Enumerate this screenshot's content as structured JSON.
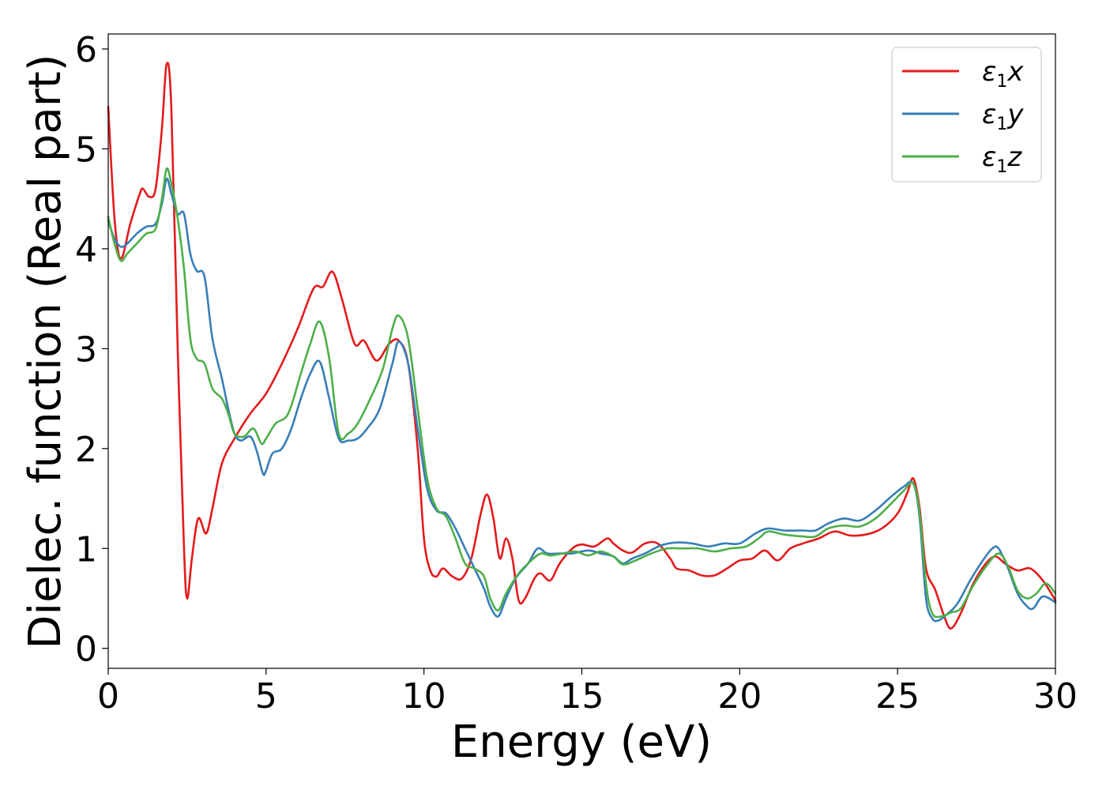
{
  "chart_data": {
    "type": "line",
    "title": "",
    "xlabel": "Energy (eV)",
    "ylabel": "Dielec. function (Real part)",
    "xlim": [
      0,
      30
    ],
    "ylim": [
      -0.2,
      6.15
    ],
    "xticks": [
      0,
      5,
      10,
      15,
      20,
      25,
      30
    ],
    "yticks": [
      0,
      1,
      2,
      3,
      4,
      5,
      6
    ],
    "grid": false,
    "legend_position": "top-right",
    "series": [
      {
        "label_main": "ε",
        "label_sub": "1",
        "label_var": "x",
        "color": "#e41a1c",
        "points": [
          [
            0,
            5.42
          ],
          [
            0.2,
            4.3
          ],
          [
            0.4,
            3.9
          ],
          [
            0.7,
            4.25
          ],
          [
            1.0,
            4.55
          ],
          [
            1.1,
            4.6
          ],
          [
            1.3,
            4.52
          ],
          [
            1.5,
            4.6
          ],
          [
            1.7,
            5.2
          ],
          [
            1.85,
            5.85
          ],
          [
            2.0,
            5.4
          ],
          [
            2.2,
            3.0
          ],
          [
            2.4,
            1.0
          ],
          [
            2.5,
            0.5
          ],
          [
            2.65,
            0.9
          ],
          [
            2.85,
            1.3
          ],
          [
            3.1,
            1.15
          ],
          [
            3.3,
            1.4
          ],
          [
            3.6,
            1.85
          ],
          [
            4.0,
            2.1
          ],
          [
            4.5,
            2.35
          ],
          [
            5.0,
            2.55
          ],
          [
            5.5,
            2.85
          ],
          [
            6.0,
            3.2
          ],
          [
            6.5,
            3.6
          ],
          [
            6.8,
            3.62
          ],
          [
            7.1,
            3.77
          ],
          [
            7.4,
            3.5
          ],
          [
            7.8,
            3.05
          ],
          [
            8.1,
            3.08
          ],
          [
            8.5,
            2.88
          ],
          [
            8.9,
            3.05
          ],
          [
            9.2,
            3.08
          ],
          [
            9.5,
            2.85
          ],
          [
            9.8,
            2.0
          ],
          [
            10.0,
            1.1
          ],
          [
            10.2,
            0.78
          ],
          [
            10.4,
            0.72
          ],
          [
            10.6,
            0.8
          ],
          [
            10.9,
            0.72
          ],
          [
            11.2,
            0.7
          ],
          [
            11.5,
            0.9
          ],
          [
            11.8,
            1.35
          ],
          [
            12.0,
            1.54
          ],
          [
            12.2,
            1.3
          ],
          [
            12.4,
            0.9
          ],
          [
            12.6,
            1.1
          ],
          [
            12.8,
            0.9
          ],
          [
            13.0,
            0.48
          ],
          [
            13.2,
            0.5
          ],
          [
            13.5,
            0.7
          ],
          [
            13.7,
            0.75
          ],
          [
            14.0,
            0.68
          ],
          [
            14.3,
            0.85
          ],
          [
            14.7,
            1.0
          ],
          [
            15.0,
            1.04
          ],
          [
            15.4,
            1.02
          ],
          [
            15.8,
            1.1
          ],
          [
            16.0,
            1.05
          ],
          [
            16.3,
            0.98
          ],
          [
            16.6,
            0.96
          ],
          [
            17.0,
            1.05
          ],
          [
            17.4,
            1.05
          ],
          [
            17.8,
            0.9
          ],
          [
            18.0,
            0.8
          ],
          [
            18.4,
            0.78
          ],
          [
            18.8,
            0.73
          ],
          [
            19.2,
            0.73
          ],
          [
            19.6,
            0.8
          ],
          [
            20.0,
            0.88
          ],
          [
            20.4,
            0.9
          ],
          [
            20.8,
            0.98
          ],
          [
            21.2,
            0.88
          ],
          [
            21.6,
            1.0
          ],
          [
            22.0,
            1.05
          ],
          [
            22.5,
            1.1
          ],
          [
            23.0,
            1.17
          ],
          [
            23.5,
            1.13
          ],
          [
            24.0,
            1.14
          ],
          [
            24.5,
            1.2
          ],
          [
            25.0,
            1.35
          ],
          [
            25.3,
            1.55
          ],
          [
            25.5,
            1.7
          ],
          [
            25.7,
            1.4
          ],
          [
            25.9,
            0.8
          ],
          [
            26.2,
            0.58
          ],
          [
            26.5,
            0.3
          ],
          [
            26.7,
            0.2
          ],
          [
            27.0,
            0.35
          ],
          [
            27.4,
            0.65
          ],
          [
            27.8,
            0.85
          ],
          [
            28.1,
            0.92
          ],
          [
            28.4,
            0.85
          ],
          [
            28.8,
            0.78
          ],
          [
            29.2,
            0.8
          ],
          [
            29.6,
            0.68
          ],
          [
            30.0,
            0.48
          ]
        ]
      },
      {
        "label_main": "ε",
        "label_sub": "1",
        "label_var": "y",
        "color": "#377eb8",
        "points": [
          [
            0,
            4.28
          ],
          [
            0.2,
            4.1
          ],
          [
            0.4,
            4.02
          ],
          [
            0.6,
            4.05
          ],
          [
            0.9,
            4.15
          ],
          [
            1.2,
            4.22
          ],
          [
            1.5,
            4.25
          ],
          [
            1.7,
            4.45
          ],
          [
            1.85,
            4.7
          ],
          [
            2.0,
            4.55
          ],
          [
            2.2,
            4.35
          ],
          [
            2.4,
            4.35
          ],
          [
            2.6,
            3.95
          ],
          [
            2.8,
            3.78
          ],
          [
            3.05,
            3.72
          ],
          [
            3.3,
            3.1
          ],
          [
            3.6,
            2.7
          ],
          [
            3.8,
            2.4
          ],
          [
            4.0,
            2.15
          ],
          [
            4.2,
            2.08
          ],
          [
            4.5,
            2.12
          ],
          [
            4.7,
            1.98
          ],
          [
            4.9,
            1.75
          ],
          [
            5.0,
            1.78
          ],
          [
            5.2,
            1.95
          ],
          [
            5.5,
            2.0
          ],
          [
            5.8,
            2.2
          ],
          [
            6.1,
            2.5
          ],
          [
            6.4,
            2.75
          ],
          [
            6.7,
            2.87
          ],
          [
            7.0,
            2.5
          ],
          [
            7.3,
            2.1
          ],
          [
            7.6,
            2.08
          ],
          [
            7.9,
            2.1
          ],
          [
            8.2,
            2.2
          ],
          [
            8.6,
            2.4
          ],
          [
            9.0,
            2.85
          ],
          [
            9.2,
            3.07
          ],
          [
            9.5,
            2.85
          ],
          [
            9.8,
            2.2
          ],
          [
            10.1,
            1.6
          ],
          [
            10.4,
            1.38
          ],
          [
            10.7,
            1.35
          ],
          [
            11.0,
            1.2
          ],
          [
            11.3,
            1.0
          ],
          [
            11.6,
            0.8
          ],
          [
            11.9,
            0.6
          ],
          [
            12.1,
            0.42
          ],
          [
            12.35,
            0.32
          ],
          [
            12.6,
            0.5
          ],
          [
            12.9,
            0.7
          ],
          [
            13.3,
            0.85
          ],
          [
            13.6,
            1.0
          ],
          [
            13.9,
            0.95
          ],
          [
            14.3,
            0.95
          ],
          [
            14.7,
            0.95
          ],
          [
            15.2,
            0.98
          ],
          [
            15.6,
            0.95
          ],
          [
            16.0,
            0.92
          ],
          [
            16.3,
            0.85
          ],
          [
            16.6,
            0.9
          ],
          [
            17.0,
            0.95
          ],
          [
            17.5,
            1.03
          ],
          [
            18.0,
            1.06
          ],
          [
            18.5,
            1.05
          ],
          [
            19.0,
            1.02
          ],
          [
            19.5,
            1.05
          ],
          [
            20.0,
            1.05
          ],
          [
            20.5,
            1.15
          ],
          [
            20.9,
            1.2
          ],
          [
            21.4,
            1.18
          ],
          [
            22.0,
            1.18
          ],
          [
            22.4,
            1.18
          ],
          [
            22.8,
            1.25
          ],
          [
            23.3,
            1.3
          ],
          [
            23.8,
            1.28
          ],
          [
            24.3,
            1.38
          ],
          [
            24.8,
            1.52
          ],
          [
            25.2,
            1.62
          ],
          [
            25.5,
            1.65
          ],
          [
            25.7,
            1.3
          ],
          [
            25.9,
            0.5
          ],
          [
            26.1,
            0.3
          ],
          [
            26.3,
            0.28
          ],
          [
            26.6,
            0.35
          ],
          [
            26.9,
            0.45
          ],
          [
            27.3,
            0.68
          ],
          [
            27.7,
            0.88
          ],
          [
            28.0,
            1.0
          ],
          [
            28.2,
            1.0
          ],
          [
            28.5,
            0.8
          ],
          [
            28.8,
            0.55
          ],
          [
            29.1,
            0.42
          ],
          [
            29.3,
            0.4
          ],
          [
            29.6,
            0.52
          ],
          [
            30.0,
            0.46
          ]
        ]
      },
      {
        "label_main": "ε",
        "label_sub": "1",
        "label_var": "z",
        "color": "#4daf4a",
        "points": [
          [
            0,
            4.32
          ],
          [
            0.2,
            4.05
          ],
          [
            0.4,
            3.88
          ],
          [
            0.6,
            3.95
          ],
          [
            0.9,
            4.05
          ],
          [
            1.2,
            4.15
          ],
          [
            1.5,
            4.2
          ],
          [
            1.7,
            4.5
          ],
          [
            1.85,
            4.8
          ],
          [
            2.0,
            4.65
          ],
          [
            2.2,
            4.3
          ],
          [
            2.4,
            3.8
          ],
          [
            2.6,
            3.1
          ],
          [
            2.8,
            2.9
          ],
          [
            3.05,
            2.85
          ],
          [
            3.3,
            2.6
          ],
          [
            3.6,
            2.5
          ],
          [
            3.8,
            2.35
          ],
          [
            4.0,
            2.15
          ],
          [
            4.3,
            2.12
          ],
          [
            4.6,
            2.2
          ],
          [
            4.85,
            2.05
          ],
          [
            5.0,
            2.1
          ],
          [
            5.3,
            2.25
          ],
          [
            5.7,
            2.35
          ],
          [
            6.1,
            2.75
          ],
          [
            6.4,
            3.05
          ],
          [
            6.7,
            3.27
          ],
          [
            7.0,
            2.9
          ],
          [
            7.3,
            2.15
          ],
          [
            7.6,
            2.15
          ],
          [
            7.9,
            2.25
          ],
          [
            8.3,
            2.5
          ],
          [
            8.7,
            2.8
          ],
          [
            9.0,
            3.2
          ],
          [
            9.2,
            3.33
          ],
          [
            9.5,
            3.1
          ],
          [
            9.8,
            2.4
          ],
          [
            10.1,
            1.7
          ],
          [
            10.4,
            1.4
          ],
          [
            10.7,
            1.32
          ],
          [
            11.0,
            1.1
          ],
          [
            11.3,
            0.85
          ],
          [
            11.6,
            0.8
          ],
          [
            11.9,
            0.72
          ],
          [
            12.1,
            0.5
          ],
          [
            12.35,
            0.38
          ],
          [
            12.6,
            0.55
          ],
          [
            13.0,
            0.75
          ],
          [
            13.4,
            0.88
          ],
          [
            13.7,
            0.95
          ],
          [
            14.0,
            0.93
          ],
          [
            14.4,
            0.95
          ],
          [
            14.8,
            0.97
          ],
          [
            15.2,
            0.93
          ],
          [
            15.6,
            0.97
          ],
          [
            16.0,
            0.92
          ],
          [
            16.3,
            0.84
          ],
          [
            16.7,
            0.88
          ],
          [
            17.2,
            0.95
          ],
          [
            17.7,
            1.0
          ],
          [
            18.2,
            1.0
          ],
          [
            18.7,
            1.0
          ],
          [
            19.2,
            0.97
          ],
          [
            19.7,
            1.0
          ],
          [
            20.2,
            1.02
          ],
          [
            20.6,
            1.1
          ],
          [
            20.9,
            1.17
          ],
          [
            21.4,
            1.14
          ],
          [
            22.0,
            1.12
          ],
          [
            22.4,
            1.12
          ],
          [
            22.8,
            1.2
          ],
          [
            23.3,
            1.23
          ],
          [
            23.8,
            1.22
          ],
          [
            24.3,
            1.3
          ],
          [
            24.8,
            1.45
          ],
          [
            25.2,
            1.58
          ],
          [
            25.5,
            1.65
          ],
          [
            25.7,
            1.35
          ],
          [
            25.9,
            0.65
          ],
          [
            26.1,
            0.35
          ],
          [
            26.4,
            0.32
          ],
          [
            26.7,
            0.36
          ],
          [
            27.0,
            0.4
          ],
          [
            27.4,
            0.63
          ],
          [
            27.8,
            0.82
          ],
          [
            28.2,
            0.95
          ],
          [
            28.5,
            0.82
          ],
          [
            28.8,
            0.58
          ],
          [
            29.1,
            0.5
          ],
          [
            29.4,
            0.55
          ],
          [
            29.7,
            0.65
          ],
          [
            30.0,
            0.55
          ]
        ]
      }
    ]
  }
}
